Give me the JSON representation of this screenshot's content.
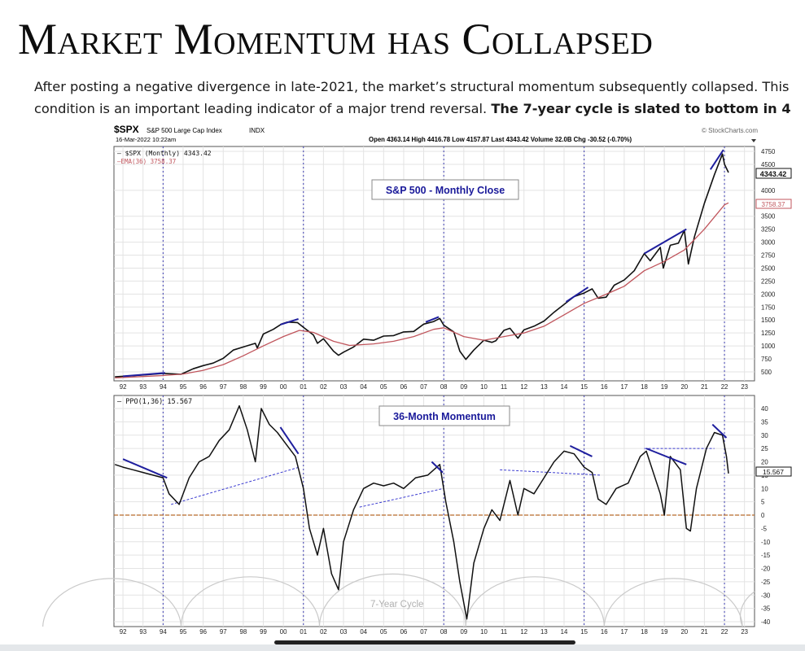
{
  "slide": {
    "title": "Market Momentum has Collapsed",
    "subtitle_line1": "After posting a negative divergence in late-2021, the market’s structural momentum subsequently collapsed. This",
    "subtitle_line2_plain": "condition is an important leading indicator of a major trend reversal. ",
    "subtitle_line2_bold": "The 7-year cycle is slated to bottom in 4"
  },
  "chart_header": {
    "symbol": "$SPX",
    "name": "S&P 500 Large Cap Index",
    "exchange": "INDX",
    "date": "16-Mar-2022 10:22am",
    "source": "© StockCharts.com",
    "quote": "Open 4363.14  High 4416.78  Low 4157.87  Last 4343.42  Volume 32.0B  Chg -30.52 (-0.70%)",
    "legend_spx": "— $SPX (Monthly) 4343.42",
    "legend_ema": "—EMA(36) 3758.37",
    "legend_ppo": "— PPO(1,36) 15.567"
  },
  "colors": {
    "price": "#111111",
    "ema": "#c0555c",
    "trend": "#1f1f9e",
    "zero_line": "#b86a2a",
    "cycle": "#c8c8c8",
    "box_text": "#1a1a9a"
  },
  "chart_data": [
    {
      "type": "line",
      "panel": "price",
      "title": "S&P 500 - Monthly Close",
      "x_ticks": [
        "92",
        "93",
        "94",
        "95",
        "96",
        "97",
        "98",
        "99",
        "00",
        "01",
        "02",
        "03",
        "04",
        "05",
        "06",
        "07",
        "08",
        "09",
        "10",
        "11",
        "12",
        "13",
        "14",
        "15",
        "16",
        "17",
        "18",
        "19",
        "20",
        "21",
        "22",
        "23"
      ],
      "y_ticks": [
        500,
        750,
        1000,
        1250,
        1500,
        1750,
        2000,
        2250,
        2500,
        2750,
        3000,
        3250,
        3500,
        4000,
        4500,
        4750
      ],
      "xlim": [
        1991.55,
        2023.5
      ],
      "ylim": [
        420,
        4800
      ],
      "last_value_label": "4343.42",
      "ema_value_label": "3758.37",
      "series": [
        {
          "name": "$SPX (Monthly)",
          "color": "#111111",
          "points": [
            [
              1991.6,
              405
            ],
            [
              1992,
              415
            ],
            [
              1993,
              440
            ],
            [
              1994,
              470
            ],
            [
              1994.9,
              455
            ],
            [
              1995.5,
              560
            ],
            [
              1996,
              620
            ],
            [
              1996.5,
              670
            ],
            [
              1997,
              760
            ],
            [
              1997.5,
              920
            ],
            [
              1998,
              980
            ],
            [
              1998.6,
              1050
            ],
            [
              1998.7,
              960
            ],
            [
              1999,
              1230
            ],
            [
              1999.5,
              1320
            ],
            [
              1999.9,
              1420
            ],
            [
              2000.2,
              1460
            ],
            [
              2000.7,
              1450
            ],
            [
              2001,
              1360
            ],
            [
              2001.5,
              1210
            ],
            [
              2001.7,
              1050
            ],
            [
              2002,
              1140
            ],
            [
              2002.5,
              900
            ],
            [
              2002.75,
              820
            ],
            [
              2003,
              880
            ],
            [
              2003.5,
              980
            ],
            [
              2004,
              1130
            ],
            [
              2004.5,
              1110
            ],
            [
              2005,
              1190
            ],
            [
              2005.5,
              1200
            ],
            [
              2006,
              1270
            ],
            [
              2006.5,
              1280
            ],
            [
              2007,
              1420
            ],
            [
              2007.5,
              1470
            ],
            [
              2007.8,
              1530
            ],
            [
              2008,
              1400
            ],
            [
              2008.5,
              1270
            ],
            [
              2008.8,
              900
            ],
            [
              2009.1,
              740
            ],
            [
              2009.5,
              920
            ],
            [
              2010,
              1110
            ],
            [
              2010.4,
              1070
            ],
            [
              2010.6,
              1100
            ],
            [
              2011,
              1300
            ],
            [
              2011.3,
              1340
            ],
            [
              2011.7,
              1150
            ],
            [
              2012,
              1310
            ],
            [
              2012.5,
              1380
            ],
            [
              2013,
              1480
            ],
            [
              2013.5,
              1650
            ],
            [
              2014,
              1800
            ],
            [
              2014.5,
              1950
            ],
            [
              2015,
              2020
            ],
            [
              2015.4,
              2100
            ],
            [
              2015.7,
              1920
            ],
            [
              2016.1,
              1940
            ],
            [
              2016.5,
              2170
            ],
            [
              2017,
              2270
            ],
            [
              2017.5,
              2450
            ],
            [
              2018,
              2780
            ],
            [
              2018.3,
              2640
            ],
            [
              2018.8,
              2900
            ],
            [
              2018.95,
              2500
            ],
            [
              2019.3,
              2940
            ],
            [
              2019.7,
              2980
            ],
            [
              2020,
              3230
            ],
            [
              2020.2,
              2580
            ],
            [
              2020.5,
              3100
            ],
            [
              2021,
              3750
            ],
            [
              2021.5,
              4300
            ],
            [
              2021.9,
              4700
            ],
            [
              2022,
              4500
            ],
            [
              2022.2,
              4343
            ]
          ]
        },
        {
          "name": "EMA(36)",
          "color": "#c0555c",
          "points": [
            [
              1991.6,
              385
            ],
            [
              1993,
              410
            ],
            [
              1994,
              430
            ],
            [
              1995,
              460
            ],
            [
              1996,
              530
            ],
            [
              1997,
              640
            ],
            [
              1998,
              810
            ],
            [
              1999,
              1000
            ],
            [
              2000,
              1180
            ],
            [
              2000.8,
              1300
            ],
            [
              2001.5,
              1260
            ],
            [
              2002.5,
              1090
            ],
            [
              2003.3,
              1010
            ],
            [
              2004.5,
              1040
            ],
            [
              2005.5,
              1090
            ],
            [
              2006.5,
              1180
            ],
            [
              2007.5,
              1320
            ],
            [
              2008,
              1350
            ],
            [
              2009,
              1180
            ],
            [
              2010,
              1110
            ],
            [
              2011,
              1180
            ],
            [
              2012,
              1250
            ],
            [
              2013,
              1380
            ],
            [
              2014,
              1600
            ],
            [
              2015,
              1820
            ],
            [
              2016,
              1980
            ],
            [
              2017,
              2150
            ],
            [
              2018,
              2450
            ],
            [
              2019,
              2630
            ],
            [
              2020,
              2850
            ],
            [
              2021,
              3250
            ],
            [
              2022,
              3720
            ],
            [
              2022.2,
              3758
            ]
          ]
        }
      ],
      "trend_lines": [
        [
          [
            1992,
            415
          ],
          [
            1994.1,
            480
          ]
        ],
        [
          [
            1999.85,
            1410
          ],
          [
            2000.75,
            1520
          ]
        ],
        [
          [
            2007.1,
            1460
          ],
          [
            2007.75,
            1560
          ]
        ],
        [
          [
            2014.1,
            1850
          ],
          [
            2015.2,
            2130
          ]
        ],
        [
          [
            2018,
            2780
          ],
          [
            2020.1,
            3250
          ]
        ],
        [
          [
            2021.3,
            4400
          ],
          [
            2021.95,
            4780
          ]
        ]
      ],
      "annotation": "S&P 500 - Monthly Close"
    },
    {
      "type": "line",
      "panel": "momentum",
      "title": "36-Month Momentum",
      "y_ticks": [
        40,
        35,
        30,
        25,
        20,
        15,
        10,
        5,
        0,
        -5,
        -10,
        -15,
        -20,
        -25,
        -30,
        -35,
        -40
      ],
      "xlim": [
        1991.55,
        2023.5
      ],
      "ylim": [
        -41,
        43
      ],
      "last_value_label": "15.567",
      "series": [
        {
          "name": "PPO(1,36)",
          "color": "#111111",
          "points": [
            [
              1991.6,
              19
            ],
            [
              1992,
              18
            ],
            [
              1992.5,
              17
            ],
            [
              1993,
              16
            ],
            [
              1993.5,
              15
            ],
            [
              1994,
              14
            ],
            [
              1994.3,
              8
            ],
            [
              1994.8,
              4
            ],
            [
              1995.3,
              14
            ],
            [
              1995.8,
              20
            ],
            [
              1996.3,
              22
            ],
            [
              1996.8,
              28
            ],
            [
              1997.3,
              32
            ],
            [
              1997.8,
              41
            ],
            [
              1998.2,
              32
            ],
            [
              1998.6,
              20
            ],
            [
              1998.9,
              40
            ],
            [
              1999.3,
              34
            ],
            [
              1999.7,
              31
            ],
            [
              2000.2,
              26
            ],
            [
              2000.6,
              22
            ],
            [
              2001,
              10
            ],
            [
              2001.3,
              -5
            ],
            [
              2001.7,
              -15
            ],
            [
              2002,
              -5
            ],
            [
              2002.4,
              -22
            ],
            [
              2002.75,
              -28
            ],
            [
              2003,
              -10
            ],
            [
              2003.5,
              2
            ],
            [
              2004,
              10
            ],
            [
              2004.5,
              12
            ],
            [
              2005,
              11
            ],
            [
              2005.5,
              12
            ],
            [
              2006,
              10
            ],
            [
              2006.6,
              14
            ],
            [
              2007.2,
              15
            ],
            [
              2007.8,
              19
            ],
            [
              2008.1,
              5
            ],
            [
              2008.5,
              -10
            ],
            [
              2008.8,
              -25
            ],
            [
              2009.15,
              -39
            ],
            [
              2009.5,
              -18
            ],
            [
              2010,
              -5
            ],
            [
              2010.4,
              2
            ],
            [
              2010.8,
              -2
            ],
            [
              2011.3,
              13
            ],
            [
              2011.7,
              0
            ],
            [
              2012,
              10
            ],
            [
              2012.5,
              8
            ],
            [
              2013,
              14
            ],
            [
              2013.5,
              20
            ],
            [
              2014,
              24
            ],
            [
              2014.5,
              23
            ],
            [
              2015,
              18
            ],
            [
              2015.4,
              16
            ],
            [
              2015.7,
              6
            ],
            [
              2016.1,
              4
            ],
            [
              2016.6,
              10
            ],
            [
              2017.2,
              12
            ],
            [
              2017.8,
              22
            ],
            [
              2018.1,
              24
            ],
            [
              2018.8,
              8
            ],
            [
              2019,
              0
            ],
            [
              2019.3,
              22
            ],
            [
              2019.8,
              17
            ],
            [
              2020.1,
              -5
            ],
            [
              2020.3,
              -6
            ],
            [
              2020.6,
              10
            ],
            [
              2021.1,
              25
            ],
            [
              2021.5,
              31
            ],
            [
              2021.9,
              30
            ],
            [
              2022.1,
              22
            ],
            [
              2022.2,
              15.6
            ]
          ]
        }
      ],
      "trend_lines": [
        [
          [
            1992,
            21
          ],
          [
            1994.2,
            14
          ]
        ],
        [
          [
            1999.85,
            33
          ],
          [
            2000.75,
            23
          ]
        ],
        [
          [
            2007.4,
            20
          ],
          [
            2007.95,
            16
          ]
        ],
        [
          [
            2014.3,
            26
          ],
          [
            2015.4,
            22
          ]
        ],
        [
          [
            2018.1,
            25
          ],
          [
            2020.1,
            19
          ]
        ],
        [
          [
            2021.4,
            34
          ],
          [
            2022.1,
            29
          ]
        ]
      ],
      "dashed_lines": [
        [
          [
            1994.4,
            4
          ],
          [
            2000.8,
            18
          ]
        ],
        [
          [
            2003.8,
            3
          ],
          [
            2008,
            10
          ]
        ],
        [
          [
            2010.8,
            17
          ],
          [
            2015.8,
            15
          ]
        ],
        [
          [
            2018,
            25
          ],
          [
            2021.5,
            25
          ]
        ]
      ],
      "zero_line": 0,
      "cycle_label": "7-Year Cycle",
      "cycle_lows": [
        1994.9,
        2001.8,
        2009.1,
        2016.0,
        2022.9
      ]
    }
  ]
}
